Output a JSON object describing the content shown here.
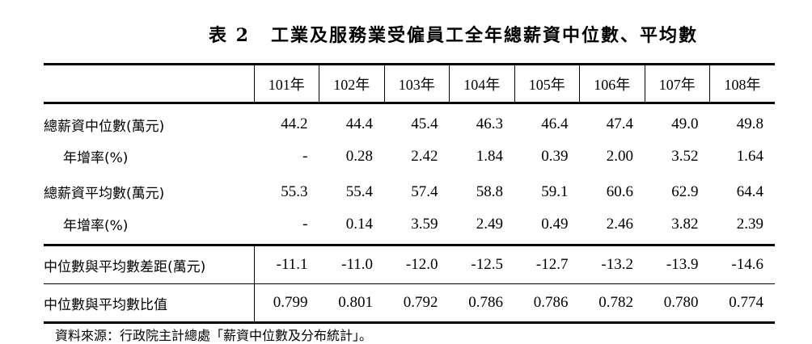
{
  "title": {
    "number": "表 2",
    "text": "工業及服務業受僱員工全年總薪資中位數、平均數"
  },
  "table": {
    "years": [
      "101年",
      "102年",
      "103年",
      "104年",
      "105年",
      "106年",
      "107年",
      "108年"
    ],
    "rows": [
      {
        "label": "總薪資中位數(萬元)",
        "values": [
          "44.2",
          "44.4",
          "45.4",
          "46.3",
          "46.4",
          "47.4",
          "49.0",
          "49.8"
        ]
      },
      {
        "label": "年增率(%)",
        "values": [
          "-",
          "0.28",
          "2.42",
          "1.84",
          "0.39",
          "2.00",
          "3.52",
          "1.64"
        ]
      },
      {
        "label": "總薪資平均數(萬元)",
        "values": [
          "55.3",
          "55.4",
          "57.4",
          "58.8",
          "59.1",
          "60.6",
          "62.9",
          "64.4"
        ]
      },
      {
        "label": "年增率(%)",
        "values": [
          "-",
          "0.14",
          "3.59",
          "2.49",
          "0.49",
          "2.46",
          "3.82",
          "2.39"
        ]
      },
      {
        "label": "中位數與平均數差距(萬元)",
        "values": [
          "-11.1",
          "-11.0",
          "-12.0",
          "-12.5",
          "-12.7",
          "-13.2",
          "-13.9",
          "-14.6"
        ]
      },
      {
        "label": "中位數與平均數比值",
        "values": [
          "0.799",
          "0.801",
          "0.792",
          "0.786",
          "0.786",
          "0.782",
          "0.780",
          "0.774"
        ]
      }
    ]
  },
  "source": "資料來源：行政院主計總處「薪資中位數及分布統計」。"
}
